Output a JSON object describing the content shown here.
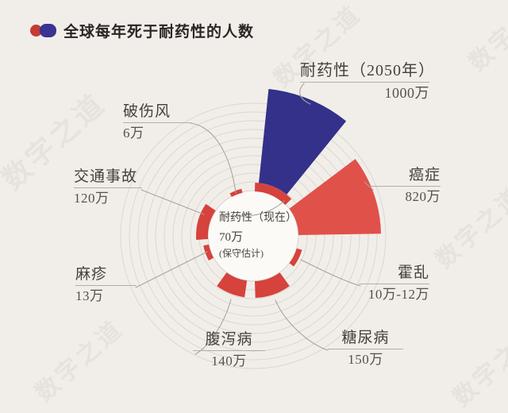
{
  "title": {
    "text": "全球每年死于耐药性的人数"
  },
  "watermark": {
    "text": "数字之道"
  },
  "colors": {
    "background": "#f1eeea",
    "red": "#d6423c",
    "cancer_red": "#e0514a",
    "blue": "#333189",
    "grid": "#dcd6cf",
    "label_text": "#453f39",
    "leader_line": "#aaa49c",
    "hub_fill": "#fcfaf7"
  },
  "center_label": {
    "line1": "耐药性（现在）",
    "line2": "70万",
    "line3": "(保守估计)"
  },
  "chart_data": {
    "type": "pie",
    "variant": "polar-area-rose",
    "title": "全球每年死于耐药性的人数",
    "unit": "万 (deaths per year, 1万 = 10,000)",
    "grid": true,
    "center": [
      319,
      297
    ],
    "hub_radius": 56,
    "grid_radii": [
      57,
      68,
      79,
      90,
      101,
      112,
      123,
      134,
      145,
      156,
      167
    ],
    "segments": [
      {
        "id": "amr_now",
        "name": "耐药性（现在）",
        "value": 70,
        "value_label": "70万",
        "note": "(保守估计)",
        "color": "#d6423c",
        "a0": 2,
        "a1": 46,
        "r0": 56,
        "r1": 67
      },
      {
        "id": "amr_2050",
        "name": "耐药性（2050年）",
        "value": 1000,
        "value_label": "1000万",
        "color": "#333189",
        "a0": 6,
        "a1": 39,
        "r0": 67,
        "r1": 186
      },
      {
        "id": "cancer",
        "name": "癌症",
        "value": 820,
        "value_label": "820万",
        "color": "#e0514a",
        "a0": 53,
        "a1": 89,
        "r0": 57,
        "r1": 161
      },
      {
        "id": "cholera",
        "name": "霍乱",
        "value": 10,
        "value_to": 12,
        "value_label": "10万-12万",
        "color": "#d6423c",
        "a0": 106,
        "a1": 127,
        "r0": 57,
        "r1": 64
      },
      {
        "id": "diabetes",
        "name": "糖尿病",
        "value": 150,
        "value_label": "150万",
        "color": "#d6423c",
        "a0": 144,
        "a1": 178,
        "r0": 57,
        "r1": 78
      },
      {
        "id": "diarrhea",
        "name": "腹泻病",
        "value": 140,
        "value_label": "140万",
        "color": "#d6423c",
        "a0": 188,
        "a1": 216,
        "r0": 57,
        "r1": 78
      },
      {
        "id": "measles",
        "name": "麻疹",
        "value": 13,
        "value_label": "13万",
        "color": "#d6423c",
        "a0": 241,
        "a1": 259,
        "r0": 57,
        "r1": 64
      },
      {
        "id": "road",
        "name": "交通事故",
        "value": 120,
        "value_label": "120万",
        "color": "#d6423c",
        "a0": 266,
        "a1": 304,
        "r0": 57,
        "r1": 72
      },
      {
        "id": "tetanus",
        "name": "破伤风",
        "value": 6,
        "value_label": "6万",
        "color": "#d6423c",
        "a0": 331,
        "a1": 346,
        "r0": 56,
        "r1": 61
      }
    ]
  }
}
